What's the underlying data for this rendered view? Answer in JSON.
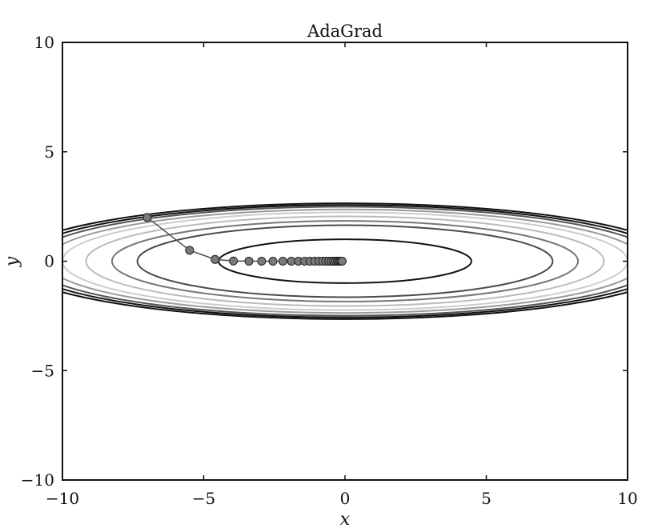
{
  "chart_data": {
    "type": "scatter",
    "title": "AdaGrad",
    "xlabel": "x",
    "ylabel": "y",
    "xlim": [
      -10,
      10
    ],
    "ylim": [
      -10,
      10
    ],
    "x_ticks": [
      -10,
      -5,
      0,
      5,
      10
    ],
    "y_ticks": [
      -10,
      -5,
      0,
      5,
      10
    ],
    "x_tick_labels": [
      "−10",
      "−5",
      "0",
      "5",
      "10"
    ],
    "y_tick_labels": [
      "−10",
      "−5",
      "0",
      "5",
      "10"
    ],
    "grid": false,
    "legend": "none",
    "contours": {
      "function": "x^2/20 + y^2",
      "levels": [
        {
          "value": 1.0,
          "color": "#111111"
        },
        {
          "value": 2.7,
          "color": "#4a4a4a"
        },
        {
          "value": 3.4,
          "color": "#777777"
        },
        {
          "value": 4.2,
          "color": "#bbbbbb"
        },
        {
          "value": 5.0,
          "color": "#cccccc"
        },
        {
          "value": 5.6,
          "color": "#9a9a9a"
        },
        {
          "value": 6.2,
          "color": "#555555"
        },
        {
          "value": 6.6,
          "color": "#111111"
        },
        {
          "value": 7.0,
          "color": "#111111"
        }
      ]
    },
    "series": [
      {
        "type": "line+markers",
        "color": "#555555",
        "marker_fill": "#7a7a7a",
        "x": [
          -7.0,
          -5.5,
          -4.6,
          -3.95,
          -3.4,
          -2.95,
          -2.55,
          -2.2,
          -1.9,
          -1.65,
          -1.43,
          -1.24,
          -1.07,
          -0.92,
          -0.79,
          -0.68,
          -0.58,
          -0.49,
          -0.41,
          -0.34,
          -0.28,
          -0.23,
          -0.18,
          -0.14,
          -0.1
        ],
        "y": [
          2.0,
          0.5,
          0.08,
          0.01,
          0.002,
          0.0,
          0.0,
          0.0,
          0.0,
          0.0,
          0.0,
          0.0,
          0.0,
          0.0,
          0.0,
          0.0,
          0.0,
          0.0,
          0.0,
          0.0,
          0.0,
          0.0,
          0.0,
          0.0,
          0.0
        ]
      }
    ]
  }
}
